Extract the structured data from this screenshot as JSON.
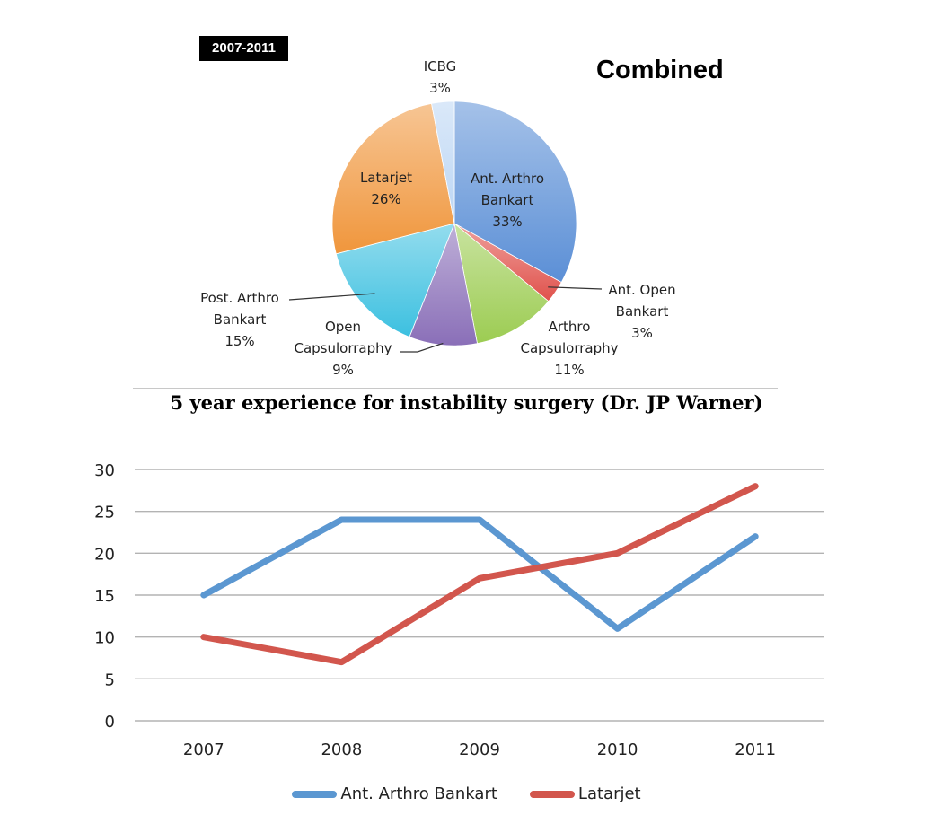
{
  "badge": "2007-2011",
  "title": "Combined",
  "caption": "5 year experience for instability surgery (Dr. JP Warner)",
  "chart_data": [
    {
      "type": "pie",
      "slices": [
        {
          "label_lines": [
            "Ant. Arthro",
            "Bankart"
          ],
          "label": "Ant. Arthro Bankart",
          "value": 33,
          "pct": "33%",
          "color": "#5b8fd6"
        },
        {
          "label_lines": [
            "Ant. Open",
            "Bankart"
          ],
          "label": "Ant. Open Bankart",
          "value": 3,
          "pct": "3%",
          "color": "#e0524c"
        },
        {
          "label_lines": [
            "Arthro",
            "Capsulorraphy"
          ],
          "label": "Arthro Capsulorraphy",
          "value": 11,
          "pct": "11%",
          "color": "#9ccc52"
        },
        {
          "label_lines": [
            "Open",
            "Capsulorraphy"
          ],
          "label": "Open Capsulorraphy",
          "value": 9,
          "pct": "9%",
          "color": "#8a6fb8"
        },
        {
          "label_lines": [
            "Post. Arthro",
            "Bankart"
          ],
          "label": "Post. Arthro Bankart",
          "value": 15,
          "pct": "15%",
          "color": "#3cc0e0"
        },
        {
          "label_lines": [
            "Latarjet"
          ],
          "label": "Latarjet",
          "value": 26,
          "pct": "26%",
          "color": "#f0963c"
        },
        {
          "label_lines": [
            "ICBG"
          ],
          "label": "ICBG",
          "value": 3,
          "pct": "3%",
          "color": "#bcd6f4"
        }
      ]
    },
    {
      "type": "line",
      "x": [
        "2007",
        "2008",
        "2009",
        "2010",
        "2011"
      ],
      "ylim": [
        0,
        30
      ],
      "yticks": [
        0,
        5,
        10,
        15,
        20,
        25,
        30
      ],
      "grid": true,
      "legend": "bottom",
      "series": [
        {
          "name": "Ant. Arthro Bankart",
          "values": [
            15,
            24,
            24,
            11,
            22
          ],
          "color": "#5b97d1"
        },
        {
          "name": "Latarjet",
          "values": [
            10,
            7,
            17,
            20,
            28
          ],
          "color": "#d2564d"
        }
      ]
    }
  ]
}
